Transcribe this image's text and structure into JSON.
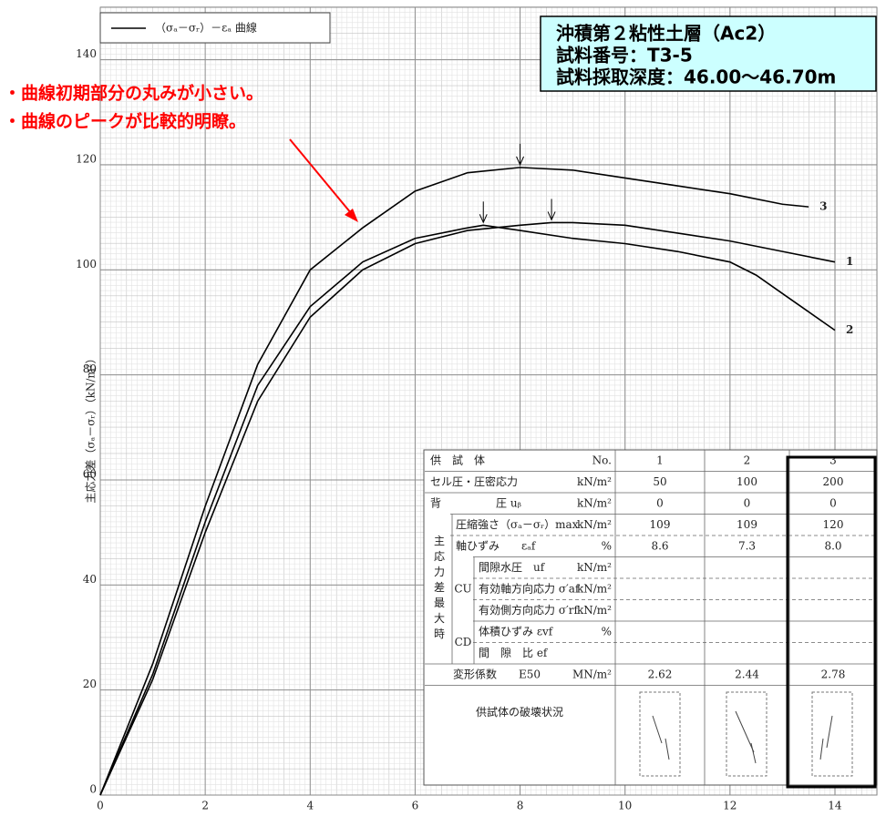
{
  "chart_data": {
    "type": "line",
    "legend": "（σₐ－σᵣ）－εₐ 曲線",
    "y_label": "主応力差（σₐ－σᵣ）（kN/m²）",
    "xlim": [
      0,
      14.8
    ],
    "ylim": [
      0,
      150
    ],
    "xticks": [
      0,
      2,
      4,
      6,
      8,
      10,
      12,
      14
    ],
    "yticks": [
      0,
      20,
      40,
      60,
      80,
      100,
      120,
      140
    ],
    "grid": true,
    "series": [
      {
        "name": "1",
        "color": "#000000",
        "x": [
          0,
          1,
          2,
          3,
          4,
          5,
          6,
          7,
          8,
          8.6,
          9,
          10,
          11,
          12,
          13,
          14
        ],
        "values": [
          0,
          22,
          50,
          75,
          91,
          100,
          105,
          107.5,
          108.5,
          109,
          109,
          108.5,
          107,
          105.5,
          103.5,
          101.5
        ]
      },
      {
        "name": "2",
        "color": "#000000",
        "x": [
          0,
          1,
          2,
          3,
          4,
          5,
          6,
          7,
          7.3,
          8,
          9,
          10,
          11,
          12,
          12.5,
          13,
          13.5,
          14
        ],
        "values": [
          0,
          23,
          52,
          78,
          93,
          101.5,
          106,
          108,
          108.5,
          107.5,
          106,
          105,
          103.5,
          101.5,
          99,
          95.5,
          92,
          88.5
        ]
      },
      {
        "name": "3",
        "color": "#000000",
        "x": [
          0,
          1,
          2,
          3,
          4,
          5,
          6,
          7,
          8,
          9,
          10,
          11,
          12,
          13,
          13.5
        ],
        "values": [
          0,
          25,
          55,
          82,
          100,
          108,
          115,
          118.5,
          119.5,
          119,
          117.5,
          116,
          114.5,
          112.5,
          112
        ]
      }
    ]
  },
  "annotations": [
    "・曲線初期部分の丸みが小さい。",
    "・曲線のピークが比較的明瞭。"
  ],
  "info_box": [
    "沖積第２粘性土層（Ac2）",
    "試料番号：T3-5",
    "試料採取深度：46.00〜46.70m"
  ],
  "table": {
    "rows": [
      {
        "label": "供　試　体",
        "unit": "No.",
        "values": [
          "1",
          "2",
          "3"
        ]
      },
      {
        "label": "セル圧・圧密応力",
        "unit": "kN/m²",
        "values": [
          "50",
          "100",
          "200"
        ]
      },
      {
        "label": "背　　　　　圧 uᵦ",
        "unit": "kN/m²",
        "values": [
          "0",
          "0",
          "0"
        ]
      },
      {
        "label": "圧縮強さ（σₐ－σᵣ）max",
        "unit": "kN/m²",
        "values": [
          "109",
          "109",
          "120"
        ]
      },
      {
        "label": "軸ひずみ　　εₐf",
        "unit": "%",
        "values": [
          "8.6",
          "7.3",
          "8.0"
        ]
      },
      {
        "label": "間隙水圧　uf",
        "unit": "kN/m²"
      },
      {
        "label": "有効軸方向応力 σ′af",
        "unit": "kN/m²"
      },
      {
        "label": "有効側方向応力 σ′rf",
        "unit": "kN/m²"
      },
      {
        "label": "体積ひずみ εvf",
        "unit": "%"
      },
      {
        "label": "間　隙　比 ef"
      },
      {
        "label": "変形係数　　E50",
        "unit": "MN/m²",
        "values": [
          "2.62",
          "2.44",
          "2.78"
        ]
      },
      {
        "label": "供試体の破壊状況"
      }
    ],
    "groups": [
      {
        "label": "主応力差最大時",
        "rows": [
          3,
          9
        ]
      },
      {
        "label": "CU",
        "rows": [
          5,
          7
        ]
      },
      {
        "label": "CD",
        "rows": [
          8,
          9
        ]
      }
    ]
  }
}
